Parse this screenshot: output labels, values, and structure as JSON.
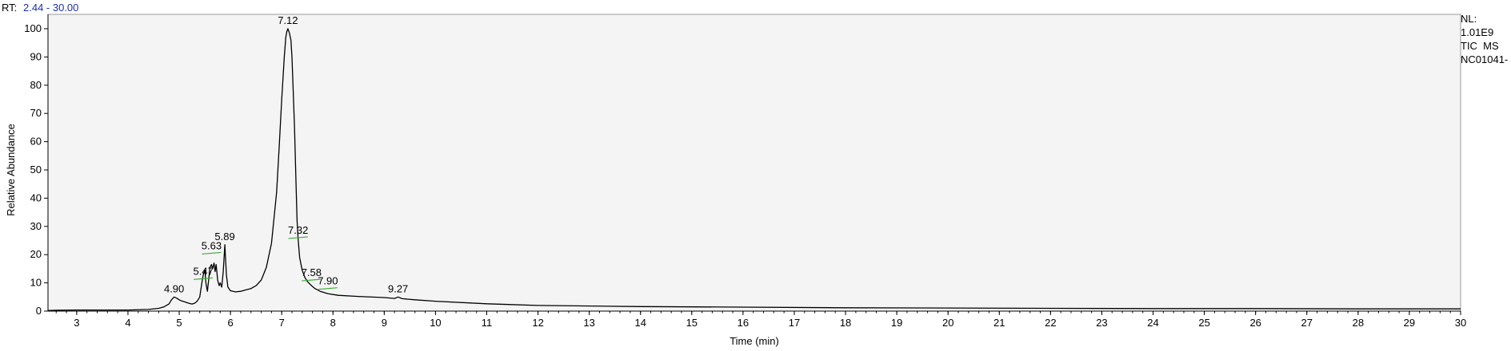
{
  "header": {
    "rt_prefix": "RT:",
    "rt_range": "2.44 - 30.00"
  },
  "info_panel": {
    "nl_label": "NL:",
    "nl_value": "1.01E9",
    "scan_type": "TIC  MS",
    "sample_name": "NC01041-"
  },
  "colors": {
    "trace": "#000000",
    "plot_background": "#f4f4f4",
    "baseline_marker": "#3aaa35",
    "rt_range_text": "#1f2fa8"
  },
  "chart_data": {
    "type": "line",
    "title": "",
    "xlabel": "Time (min)",
    "ylabel": "Relative Abundance",
    "xlim": [
      2.44,
      30.0
    ],
    "ylim": [
      0,
      100
    ],
    "x_ticks": [
      3,
      4,
      5,
      6,
      7,
      8,
      9,
      10,
      11,
      12,
      13,
      14,
      15,
      16,
      17,
      18,
      19,
      20,
      21,
      22,
      23,
      24,
      25,
      26,
      27,
      28,
      29,
      30
    ],
    "y_ticks": [
      0,
      10,
      20,
      30,
      40,
      50,
      60,
      70,
      80,
      90,
      100
    ],
    "grid": false,
    "series": [
      {
        "name": "",
        "x": [
          2.44,
          2.6,
          3.0,
          3.5,
          4.0,
          4.4,
          4.6,
          4.7,
          4.8,
          4.85,
          4.9,
          4.95,
          5.0,
          5.05,
          5.1,
          5.15,
          5.2,
          5.25,
          5.3,
          5.35,
          5.4,
          5.45,
          5.47,
          5.5,
          5.52,
          5.55,
          5.58,
          5.6,
          5.63,
          5.65,
          5.68,
          5.7,
          5.72,
          5.75,
          5.78,
          5.8,
          5.83,
          5.86,
          5.89,
          5.92,
          5.95,
          6.0,
          6.1,
          6.2,
          6.3,
          6.4,
          6.5,
          6.6,
          6.7,
          6.8,
          6.9,
          6.95,
          7.0,
          7.05,
          7.08,
          7.1,
          7.12,
          7.15,
          7.18,
          7.2,
          7.22,
          7.25,
          7.28,
          7.3,
          7.32,
          7.35,
          7.4,
          7.45,
          7.5,
          7.58,
          7.65,
          7.75,
          7.9,
          8.1,
          8.5,
          9.0,
          9.2,
          9.27,
          9.35,
          9.6,
          10.0,
          11.0,
          12.0,
          14.0,
          16.0,
          18.0,
          20.0,
          22.0,
          24.0,
          26.0,
          28.0,
          30.0
        ],
        "y": [
          0.2,
          0.3,
          0.4,
          0.4,
          0.4,
          0.6,
          1.0,
          1.5,
          2.5,
          4.0,
          5.0,
          4.6,
          4.0,
          3.6,
          3.3,
          3.0,
          2.7,
          2.5,
          2.8,
          3.5,
          5.0,
          11.0,
          13.0,
          14.5,
          10.0,
          7.0,
          12.0,
          15.5,
          16.5,
          15.0,
          17.0,
          14.0,
          16.5,
          11.0,
          9.0,
          10.0,
          8.5,
          14.0,
          23.5,
          13.0,
          8.5,
          7.2,
          6.8,
          7.0,
          7.5,
          8.0,
          9.0,
          11.0,
          15.5,
          24.0,
          42.0,
          58.0,
          75.0,
          90.0,
          97.0,
          99.0,
          100.0,
          98.5,
          96.0,
          90.0,
          80.0,
          65.0,
          45.0,
          32.0,
          25.5,
          19.0,
          14.5,
          12.0,
          10.5,
          9.0,
          8.0,
          7.0,
          6.2,
          5.6,
          5.2,
          4.8,
          4.5,
          5.0,
          4.4,
          4.0,
          3.5,
          2.6,
          2.0,
          1.6,
          1.4,
          1.2,
          1.1,
          1.0,
          0.9,
          0.9,
          0.8,
          0.8
        ]
      }
    ],
    "peak_labels": [
      {
        "rt": 4.9,
        "label": "4.90",
        "y": 5.0,
        "baseline": false
      },
      {
        "rt": 5.47,
        "label": "5.47",
        "y": 13.0,
        "baseline": true,
        "baseline_y": 11.5
      },
      {
        "rt": 5.63,
        "label": "5.63",
        "y": 16.5,
        "baseline": true,
        "baseline_y": 20.5
      },
      {
        "rt": 5.89,
        "label": "5.89",
        "y": 23.5,
        "baseline": false
      },
      {
        "rt": 7.12,
        "label": "7.12",
        "y": 100.0,
        "baseline": false
      },
      {
        "rt": 7.32,
        "label": "7.32",
        "y": 25.5,
        "baseline": true,
        "baseline_y": 26.0
      },
      {
        "rt": 7.58,
        "label": "7.58",
        "y": 9.0,
        "baseline": true,
        "baseline_y": 11.0
      },
      {
        "rt": 7.9,
        "label": "7.90",
        "y": 6.2,
        "baseline": true,
        "baseline_y": 8.0
      },
      {
        "rt": 9.27,
        "label": "9.27",
        "y": 5.0,
        "baseline": false
      }
    ]
  }
}
